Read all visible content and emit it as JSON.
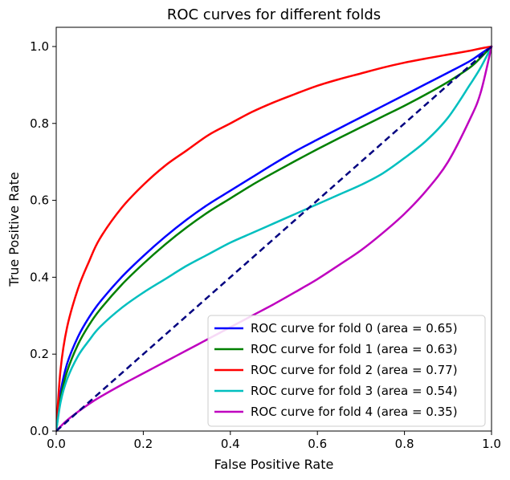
{
  "chart_data": {
    "type": "line",
    "title": "ROC curves for different folds",
    "xlabel": "False Positive Rate",
    "ylabel": "True Positive Rate",
    "xlim": [
      0.0,
      1.0
    ],
    "ylim": [
      0.0,
      1.05
    ],
    "x_ticks": [
      "0.0",
      "0.2",
      "0.4",
      "0.6",
      "0.8",
      "1.0"
    ],
    "y_ticks": [
      "0.0",
      "0.2",
      "0.4",
      "0.6",
      "0.8",
      "1.0"
    ],
    "grid": false,
    "legend_position": "lower right",
    "x": [
      0.0,
      0.01,
      0.025,
      0.05,
      0.075,
      0.1,
      0.15,
      0.2,
      0.25,
      0.3,
      0.35,
      0.4,
      0.45,
      0.5,
      0.55,
      0.6,
      0.65,
      0.7,
      0.75,
      0.8,
      0.85,
      0.9,
      0.95,
      0.975,
      1.0
    ],
    "series": [
      {
        "name": "ROC curve for fold 0 (area = 0.65)",
        "color": "#0000ff",
        "values": [
          0.0,
          0.1,
          0.175,
          0.245,
          0.295,
          0.335,
          0.4,
          0.455,
          0.505,
          0.55,
          0.59,
          0.625,
          0.66,
          0.695,
          0.728,
          0.758,
          0.787,
          0.816,
          0.845,
          0.874,
          0.903,
          0.932,
          0.962,
          0.981,
          1.0
        ]
      },
      {
        "name": "ROC curve for fold 1 (area = 0.63)",
        "color": "#008000",
        "values": [
          0.0,
          0.085,
          0.155,
          0.225,
          0.275,
          0.315,
          0.38,
          0.435,
          0.485,
          0.53,
          0.57,
          0.605,
          0.64,
          0.672,
          0.703,
          0.733,
          0.762,
          0.79,
          0.818,
          0.846,
          0.876,
          0.908,
          0.945,
          0.971,
          1.0
        ]
      },
      {
        "name": "ROC curve for fold 2 (area = 0.77)",
        "color": "#ff0000",
        "values": [
          0.0,
          0.16,
          0.27,
          0.37,
          0.44,
          0.5,
          0.58,
          0.64,
          0.69,
          0.73,
          0.77,
          0.8,
          0.83,
          0.855,
          0.877,
          0.898,
          0.915,
          0.93,
          0.945,
          0.958,
          0.969,
          0.979,
          0.989,
          0.995,
          1.0
        ]
      },
      {
        "name": "ROC curve for fold 3 (area = 0.54)",
        "color": "#00bfbf",
        "values": [
          0.0,
          0.075,
          0.135,
          0.195,
          0.235,
          0.27,
          0.32,
          0.36,
          0.395,
          0.43,
          0.46,
          0.49,
          0.515,
          0.54,
          0.565,
          0.59,
          0.615,
          0.64,
          0.67,
          0.71,
          0.755,
          0.815,
          0.9,
          0.945,
          1.0
        ]
      },
      {
        "name": "ROC curve for fold 4 (area = 0.35)",
        "color": "#bf00bf",
        "values": [
          0.0,
          0.012,
          0.028,
          0.05,
          0.07,
          0.088,
          0.12,
          0.15,
          0.18,
          0.21,
          0.24,
          0.27,
          0.3,
          0.33,
          0.362,
          0.395,
          0.432,
          0.47,
          0.515,
          0.565,
          0.625,
          0.7,
          0.81,
          0.88,
          1.0
        ]
      }
    ],
    "reference_line": {
      "color": "#000080",
      "style": "dashed",
      "x": [
        0.0,
        1.0
      ],
      "values": [
        0.0,
        1.0
      ]
    }
  }
}
